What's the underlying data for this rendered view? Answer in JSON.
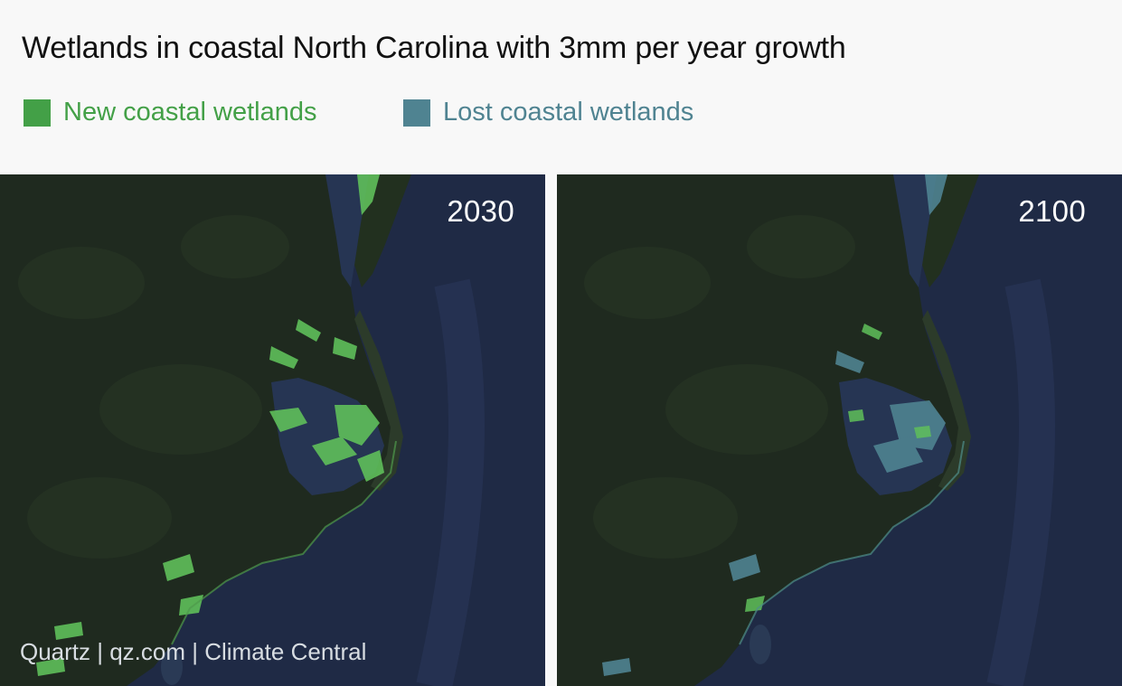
{
  "title": "Wetlands in coastal North Carolina with 3mm per year growth",
  "legend": {
    "new": {
      "label": "New coastal wetlands",
      "color": "#43a047"
    },
    "lost": {
      "label": "Lost coastal wetlands",
      "color": "#4f8391"
    }
  },
  "panels": [
    {
      "year": "2030"
    },
    {
      "year": "2100"
    }
  ],
  "credit": "Quartz | qz.com | Climate Central",
  "colors": {
    "land": "#1f2a1f",
    "ocean": "#1f2a45",
    "sound": "#263553",
    "new_wetland": "#5fbf5a",
    "lost_wetland": "#4f8391",
    "text_dark": "#111111"
  }
}
